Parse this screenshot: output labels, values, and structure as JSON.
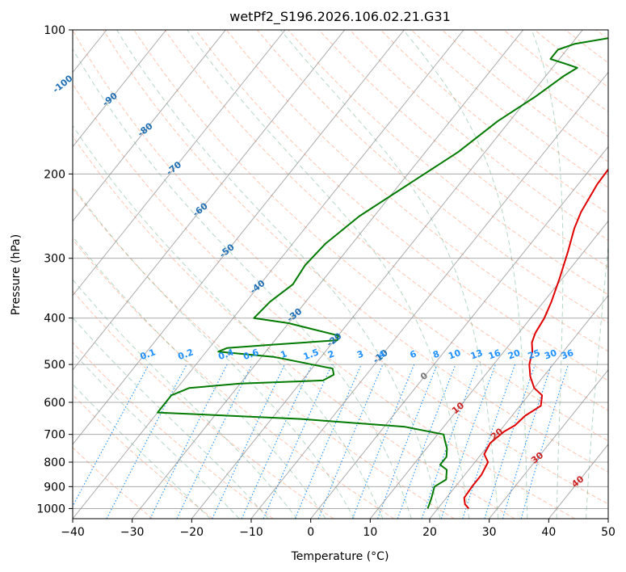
{
  "chart_data": {
    "type": "line",
    "title": "wetPf2_S196.2026.106.02.21.G31",
    "xlabel": "Temperature (°C)",
    "ylabel": "Pressure (hPa)",
    "xlim": [
      -40,
      50
    ],
    "ylim": [
      1050,
      100
    ],
    "y_scale": "log",
    "grid": true,
    "x_ticks": [
      "−40",
      "−30",
      "−20",
      "−10",
      "0",
      "10",
      "20",
      "30",
      "40",
      "50"
    ],
    "y_ticks": [
      "100",
      "200",
      "300",
      "400",
      "500",
      "600",
      "700",
      "800",
      "900",
      "1000"
    ],
    "y_tick_values": [
      100,
      200,
      300,
      400,
      500,
      600,
      700,
      800,
      900,
      1000
    ],
    "skew_isotherm_labels": [
      {
        "text": "-100",
        "t": -100,
        "p": 130
      },
      {
        "text": "-90",
        "t": -90,
        "p": 140
      },
      {
        "text": "-80",
        "t": -80,
        "p": 162
      },
      {
        "text": "-70",
        "t": -70,
        "p": 195
      },
      {
        "text": "-60",
        "t": -60,
        "p": 238
      },
      {
        "text": "-50",
        "t": -50,
        "p": 290
      },
      {
        "text": "-40",
        "t": -40,
        "p": 345
      },
      {
        "text": "-30",
        "t": -30,
        "p": 395
      },
      {
        "text": "-20",
        "t": -20,
        "p": 445
      },
      {
        "text": "-10",
        "t": -10,
        "p": 482
      },
      {
        "text": "0",
        "t": 0,
        "p": 530
      },
      {
        "text": "10",
        "t": 10,
        "p": 618
      },
      {
        "text": "20",
        "t": 20,
        "p": 700
      },
      {
        "text": "30",
        "t": 30,
        "p": 785
      },
      {
        "text": "40",
        "t": 40,
        "p": 880
      }
    ],
    "mixing_ratio_labels": [
      "0.1",
      "0.2",
      "0.4",
      "0.6",
      "1",
      "1.5",
      "2",
      "3",
      "4",
      "6",
      "8",
      "10",
      "13",
      "16",
      "20",
      "25",
      "30",
      "36"
    ],
    "mixing_ratio_values": [
      0.1,
      0.2,
      0.4,
      0.6,
      1,
      1.5,
      2,
      3,
      4,
      6,
      8,
      10,
      13,
      16,
      20,
      25,
      30,
      36
    ],
    "series": [
      {
        "color": "#e00000",
        "points": [
          [
            25.2,
            1000
          ],
          [
            24,
            980
          ],
          [
            23,
            950
          ],
          [
            22.8,
            900
          ],
          [
            22.8,
            850
          ],
          [
            22.2,
            800
          ],
          [
            20.5,
            770
          ],
          [
            20.0,
            730
          ],
          [
            20.8,
            690
          ],
          [
            21.8,
            670
          ],
          [
            22.2,
            640
          ],
          [
            23.5,
            610
          ],
          [
            22.3,
            580
          ],
          [
            20.0,
            560
          ],
          [
            17.8,
            530
          ],
          [
            16.0,
            500
          ],
          [
            14.8,
            470
          ],
          [
            13.5,
            450
          ],
          [
            12.8,
            430
          ],
          [
            12.3,
            400
          ],
          [
            11.3,
            370
          ],
          [
            9.5,
            330
          ],
          [
            7.3,
            290
          ],
          [
            5.3,
            260
          ],
          [
            4.2,
            240
          ],
          [
            3.2,
            210
          ],
          [
            3.0,
            190
          ],
          [
            4.0,
            170
          ],
          [
            6.0,
            150
          ],
          [
            6.5,
            130
          ],
          [
            7.0,
            118
          ],
          [
            8.5,
            105
          ],
          [
            9.0,
            100
          ]
        ]
      },
      {
        "color": "#007a00",
        "points": [
          [
            18.3,
            1000
          ],
          [
            18.0,
            980
          ],
          [
            17.5,
            950
          ],
          [
            16.5,
            900
          ],
          [
            17.5,
            870
          ],
          [
            16.3,
            830
          ],
          [
            14.5,
            810
          ],
          [
            14.5,
            780
          ],
          [
            13.5,
            750
          ],
          [
            12.0,
            720
          ],
          [
            11.0,
            700
          ],
          [
            3.5,
            675
          ],
          [
            -15,
            650
          ],
          [
            -40,
            630
          ],
          [
            -40,
            580
          ],
          [
            -38,
            560
          ],
          [
            -30,
            548
          ],
          [
            -16.5,
            540
          ],
          [
            -15.5,
            525
          ],
          [
            -16.5,
            510
          ],
          [
            -28,
            482
          ],
          [
            -38,
            470
          ],
          [
            -37,
            462
          ],
          [
            -30,
            455
          ],
          [
            -19.5,
            445
          ],
          [
            -20,
            435
          ],
          [
            -30,
            410
          ],
          [
            -36.5,
            400
          ],
          [
            -36,
            370
          ],
          [
            -34.5,
            340
          ],
          [
            -35,
            310
          ],
          [
            -34.5,
            280
          ],
          [
            -32.5,
            245
          ],
          [
            -28.5,
            210
          ],
          [
            -24.5,
            180
          ],
          [
            -22,
            155
          ],
          [
            -19,
            138
          ],
          [
            -17,
            125
          ],
          [
            -15.8,
            120
          ],
          [
            -18,
            118
          ],
          [
            -21.5,
            115
          ],
          [
            -21.5,
            110
          ],
          [
            -19.5,
            107
          ],
          [
            -14.5,
            104
          ],
          [
            -13.5,
            100
          ]
        ]
      }
    ]
  }
}
